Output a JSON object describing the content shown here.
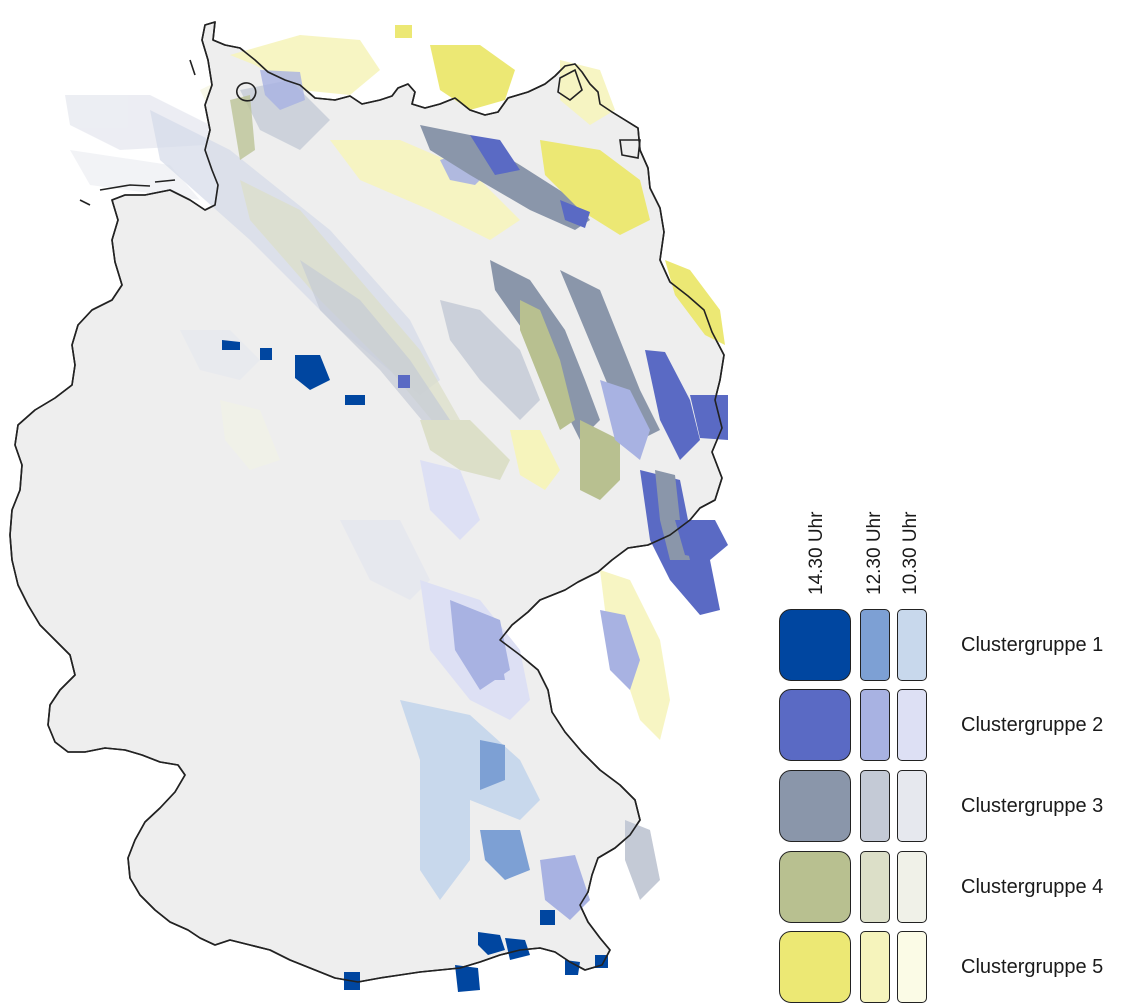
{
  "legend": {
    "time_headers": [
      "14.30 Uhr",
      "12.30 Uhr",
      "10.30 Uhr"
    ],
    "clusters": [
      {
        "label": "Clustergruppe 1",
        "colors": [
          "#0046a0",
          "#7da0d4",
          "#c8d8ec"
        ]
      },
      {
        "label": "Clustergruppe 2",
        "colors": [
          "#5a6ac4",
          "#a8b2e2",
          "#dde0f4"
        ]
      },
      {
        "label": "Clustergruppe 3",
        "colors": [
          "#8a96aa",
          "#c4cad6",
          "#e6e8ee"
        ]
      },
      {
        "label": "Clustergruppe 4",
        "colors": [
          "#b8c090",
          "#dcdfc8",
          "#f0f1e8"
        ]
      },
      {
        "label": "Clustergruppe 5",
        "colors": [
          "#ece874",
          "#f6f4bc",
          "#fbfbe6"
        ]
      }
    ]
  },
  "map": {
    "background_color": "#eeeeee",
    "outline_color": "#222222"
  }
}
